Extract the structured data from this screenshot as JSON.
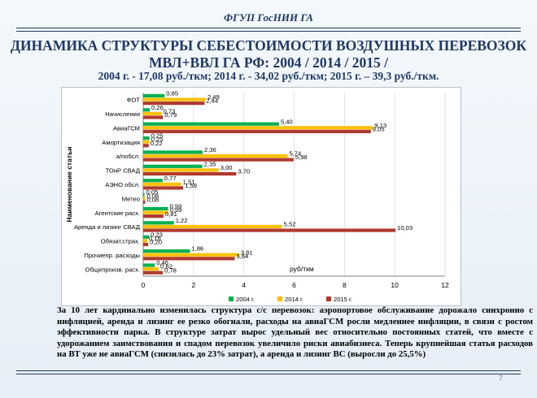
{
  "header": {
    "org": "ФГУП ГосНИИ ГА"
  },
  "title": {
    "line1": "ДИНАМИКА СТРУКТУРЫ СЕБЕСТОИМОСТИ ВОЗДУШНЫХ ПЕРЕВОЗОК",
    "line2": "МВЛ+ВВЛ ГА РФ:  2004 / 2014 / 2015 /"
  },
  "subtitle": "2004 г. - 17,08 руб./ткм;      2014 г. - 34,02 руб./ткм;      2015 г. – 39,3 руб./ткм.",
  "chart_data": {
    "type": "bar",
    "orientation": "horizontal",
    "categories": [
      "ФОТ",
      "Начисления",
      "АвиаГСМ",
      "Амортизация",
      "а/побсл.",
      "ТОиР СВАД",
      "АЭНО обсл.",
      "Метео",
      "Агентские расх.",
      "Аренда и лизинг СВАД",
      "Обязат.страх.",
      "Прочиепр. расходы",
      "Общепроизв. расх."
    ],
    "series": [
      {
        "name": "2004 г.",
        "color": "#00b050",
        "values": [
          0.85,
          0.26,
          5.4,
          0.25,
          2.36,
          2.35,
          0.77,
          0.05,
          0.99,
          1.22,
          0.23,
          1.86,
          0.46
        ],
        "labels": [
          "0,85",
          "0,26",
          "5,40",
          "0,25",
          "2,36",
          "2,35",
          "0,77",
          "0,05",
          "0,99",
          "1,22",
          "0,23",
          "1,86",
          "0,46"
        ]
      },
      {
        "name": "2014 г.",
        "color": "#ffc000",
        "values": [
          2.49,
          0.73,
          9.13,
          0.25,
          5.74,
          3.0,
          1.51,
          0.08,
          0.99,
          5.52,
          0.16,
          3.81,
          0.62
        ],
        "labels": [
          "2,49",
          "0,73",
          "9,13",
          "0,25",
          "5,74",
          "3,00",
          "1,51",
          "0,08",
          "0,99",
          "5,52",
          "0,16",
          "3,81",
          "0,62"
        ]
      },
      {
        "name": "2015 г.",
        "color": "#b03a2e",
        "values": [
          2.44,
          0.79,
          9.05,
          0.22,
          5.98,
          3.7,
          1.59,
          0.08,
          0.81,
          10.03,
          0.2,
          3.64,
          0.78
        ],
        "labels": [
          "2,44",
          "0,79",
          "9,05",
          "0,22",
          "5,98",
          "3,70",
          "1,59",
          "0,08",
          "0,81",
          "10,03",
          "0,20",
          "3,64",
          "0,78"
        ]
      }
    ],
    "xlim": [
      0,
      12
    ],
    "xticks": [
      "0",
      "2",
      "4",
      "6",
      "8",
      "10",
      "12"
    ],
    "xlabel": "руб/ткм",
    "ylabel": "Наименование статьи",
    "grid": "vertical",
    "legend": "bottom"
  },
  "paragraph": "За 10 лет кардинально изменилась структура с/с перевозок: аэропортовое обслуживание дорожало синхронно с инфляцией, аренда и лизинг ее резко обогнали, расходы на авиаГСМ росли медленнее инфляции, в связи с ростом эффективности парка. В структуре затрат вырос удельный вес относительно постоянных статей, что вместе с удорожанием заимствования и спадом перевозок увеличило риски авиабизнеса. Теперь крупнейшая статья расходов на ВТ уже не авиаГСМ (снизилась до 23% затрат), а аренда и лизинг ВС (выросли до 25,5%)",
  "page_number": "7"
}
